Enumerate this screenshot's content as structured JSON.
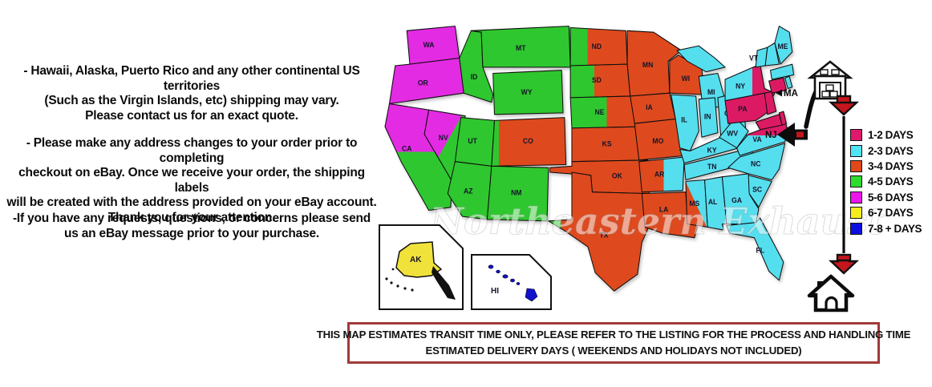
{
  "notes": [
    {
      "lines": [
        "- Hawaii, Alaska, Puerto Rico and any other continental US territories",
        "(Such as the Virgin Islands, etc) shipping may vary.",
        "Please contact us for an exact quote."
      ]
    },
    {
      "lines": [
        "- Please make any address changes to your order prior to completing",
        "checkout on eBay. Once we receive your order, the shipping labels",
        "will be created with the address provided on your eBay account.",
        "Thank you for your attention."
      ]
    },
    {
      "lines": [
        "-If you have any requests, questions, or concerns please send",
        "us an eBay message prior to your purchase."
      ]
    }
  ],
  "legend": {
    "items": [
      {
        "label": "1-2 DAYS",
        "color": "#e0186c"
      },
      {
        "label": "2-3 DAYS",
        "color": "#4fe4f4"
      },
      {
        "label": "3-4 DAYS",
        "color": "#e04818"
      },
      {
        "label": "4-5 DAYS",
        "color": "#2edc2e"
      },
      {
        "label": "5-6 DAYS",
        "color": "#ee14ee"
      },
      {
        "label": "6-7 DAYS",
        "color": "#f5ec1c"
      },
      {
        "label": "7-8 + DAYS",
        "color": "#0e0ee0"
      }
    ]
  },
  "map": {
    "watermark": "Northeastern Exhaust",
    "zones": {
      "1-2": "#dc1a64",
      "2-3": "#55deee",
      "3-4": "#de4a1e",
      "4-5": "#2fc72f",
      "5-6": "#e32be3",
      "6-7": "#f0e23a",
      "7-8+": "#1212cc"
    },
    "annotations": {
      "nj": "NJ",
      "ma": "MA"
    },
    "insets": [
      {
        "id": "AK",
        "label": "AK",
        "zone": "6-7"
      },
      {
        "id": "HI",
        "label": "HI",
        "zone": "7-8+"
      }
    ],
    "states": [
      {
        "id": "WA",
        "label": "WA",
        "zone": "5-6"
      },
      {
        "id": "OR",
        "label": "OR",
        "zone": "5-6"
      },
      {
        "id": "CA",
        "label": "CA",
        "zone": "5-6",
        "zone2": "4-5",
        "split": 0.45,
        "dir": "v"
      },
      {
        "id": "NV",
        "label": "NV",
        "zone": "5-6",
        "zone2": "4-5",
        "split": 0.5,
        "dir": "d"
      },
      {
        "id": "ID",
        "label": "ID",
        "zone": "4-5"
      },
      {
        "id": "MT",
        "label": "MT",
        "zone": "4-5"
      },
      {
        "id": "WY",
        "label": "WY",
        "zone": "4-5"
      },
      {
        "id": "UT",
        "label": "UT",
        "zone": "4-5"
      },
      {
        "id": "AZ",
        "label": "AZ",
        "zone": "4-5"
      },
      {
        "id": "NM",
        "label": "NM",
        "zone": "4-5"
      },
      {
        "id": "ND",
        "label": "ND",
        "zone": "4-5",
        "zone2": "3-4",
        "split": 0.3,
        "dir": "h"
      },
      {
        "id": "SD",
        "label": "SD",
        "zone": "4-5",
        "zone2": "3-4",
        "split": 0.4,
        "dir": "h"
      },
      {
        "id": "NE",
        "label": "NE",
        "zone": "4-5",
        "zone2": "3-4",
        "split": 0.48,
        "dir": "h"
      },
      {
        "id": "CO",
        "label": "CO",
        "zone": "4-5",
        "zone2": "3-4",
        "split": 0.1,
        "dir": "h"
      },
      {
        "id": "KS",
        "label": "KS",
        "zone": "3-4"
      },
      {
        "id": "OK",
        "label": "OK",
        "zone": "3-4"
      },
      {
        "id": "TX",
        "label": "TX",
        "zone": "4-5",
        "zone2": "3-4",
        "split": 0.12,
        "dir": "h"
      },
      {
        "id": "MN",
        "label": "MN",
        "zone": "3-4"
      },
      {
        "id": "IA",
        "label": "IA",
        "zone": "3-4"
      },
      {
        "id": "MO",
        "label": "MO",
        "zone": "3-4"
      },
      {
        "id": "WI",
        "label": "WI",
        "zone": "3-4"
      },
      {
        "id": "AR",
        "label": "AR",
        "zone": "3-4",
        "zone2": "2-3",
        "split": 0.55,
        "dir": "h"
      },
      {
        "id": "LA",
        "label": "LA",
        "zone": "3-4"
      },
      {
        "id": "MS",
        "label": "MS",
        "zone": "3-4",
        "zone2": "2-3",
        "split": 0.48,
        "dir": "u"
      },
      {
        "id": "MI",
        "label": "MI",
        "zone": "2-3"
      },
      {
        "id": "IL",
        "label": "IL",
        "zone": "2-3"
      },
      {
        "id": "IN",
        "label": "IN",
        "zone": "2-3"
      },
      {
        "id": "OH",
        "label": "OH",
        "zone": "2-3"
      },
      {
        "id": "KY",
        "label": "KY",
        "zone": "2-3"
      },
      {
        "id": "TN",
        "label": "TN",
        "zone": "2-3"
      },
      {
        "id": "WV",
        "label": "WV",
        "zone": "2-3"
      },
      {
        "id": "AL",
        "label": "AL",
        "zone": "2-3"
      },
      {
        "id": "GA",
        "label": "GA",
        "zone": "2-3"
      },
      {
        "id": "FL",
        "label": "FL",
        "zone": "2-3"
      },
      {
        "id": "SC",
        "label": "SC",
        "zone": "2-3"
      },
      {
        "id": "NC",
        "label": "NC",
        "zone": "2-3"
      },
      {
        "id": "VA",
        "label": "VA",
        "zone": "1-2",
        "zone2": "2-3",
        "split": 0.42,
        "dir": "v"
      },
      {
        "id": "PA",
        "label": "PA",
        "zone": "2-3",
        "zone2": "1-2",
        "split": 0.14,
        "dir": "d"
      },
      {
        "id": "NY",
        "label": "NY",
        "zone": "2-3",
        "zone2": "1-2",
        "split": 0.55,
        "dir": "h"
      },
      {
        "id": "NJ",
        "zone": "1-2"
      },
      {
        "id": "MD",
        "zone": "1-2"
      },
      {
        "id": "DE",
        "zone": "1-2"
      },
      {
        "id": "CT",
        "zone": "1-2"
      },
      {
        "id": "RI",
        "zone": "2-3"
      },
      {
        "id": "VT",
        "label": "VT",
        "zone": "2-3"
      },
      {
        "id": "NH",
        "zone": "2-3"
      },
      {
        "id": "ME",
        "label": "ME",
        "zone": "2-3"
      },
      {
        "id": "MA",
        "zone": "2-3"
      }
    ]
  },
  "colors": {
    "arrow_red": "#c5161d",
    "outline_black": "#0c0c0c"
  },
  "disclaimer": {
    "lines": [
      "THIS MAP ESTIMATES TRANSIT TIME ONLY, PLEASE REFER TO THE LISTING FOR THE PROCESS AND HANDLING TIME",
      "ESTIMATED DELIVERY DAYS ( WEEKENDS AND HOLIDAYS NOT INCLUDED)"
    ]
  }
}
